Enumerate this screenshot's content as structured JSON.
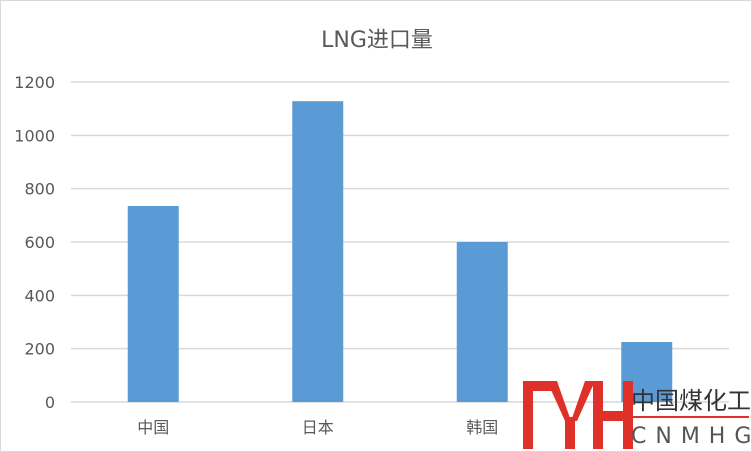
{
  "chart_data": {
    "type": "bar",
    "title": "LNG进口量",
    "categories": [
      "中国",
      "日本",
      "韩国",
      ""
    ],
    "values": [
      735,
      1128,
      600,
      225
    ],
    "ylim": [
      0,
      1200
    ],
    "yticks": [
      0,
      200,
      400,
      600,
      800,
      1000,
      1200
    ],
    "grid": true,
    "bar_color": "#5B9BD5",
    "grid_color": "#D9D9D9"
  },
  "watermark": {
    "name": "中国煤化工",
    "latin": "CNMHG",
    "color": "#E0302A"
  }
}
